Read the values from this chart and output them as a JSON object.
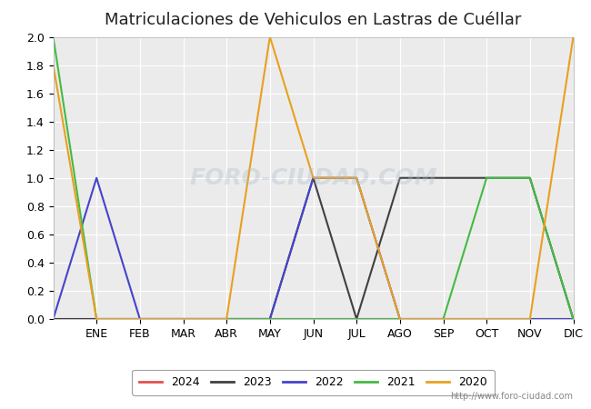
{
  "title": "Matriculaciones de Vehiculos en Lastras de Cuéllar",
  "month_labels": [
    "ENE",
    "FEB",
    "MAR",
    "ABR",
    "MAY",
    "JUN",
    "JUL",
    "AGO",
    "SEP",
    "OCT",
    "NOV",
    "DIC"
  ],
  "series": {
    "2024": {
      "color": "#e05050",
      "data": [
        0,
        0,
        0,
        0,
        0,
        0,
        0,
        0,
        0,
        0,
        0,
        0,
        0
      ]
    },
    "2023": {
      "color": "#404040",
      "data": [
        0,
        0,
        0,
        0,
        0,
        0,
        1,
        0,
        1,
        1,
        1,
        1,
        0
      ]
    },
    "2022": {
      "color": "#4444cc",
      "data": [
        0,
        1,
        0,
        0,
        0,
        0,
        1,
        1,
        0,
        0,
        0,
        0,
        0
      ]
    },
    "2021": {
      "color": "#44bb44",
      "data": [
        2,
        0,
        0,
        0,
        0,
        0,
        0,
        0,
        0,
        0,
        1,
        1,
        0
      ]
    },
    "2020": {
      "color": "#e8a020",
      "data": [
        1.8,
        0,
        0,
        0,
        0,
        2,
        1,
        1,
        0,
        0,
        0,
        0,
        2
      ]
    }
  },
  "legend_order": [
    "2024",
    "2023",
    "2022",
    "2021",
    "2020"
  ],
  "ylim": [
    0,
    2.0
  ],
  "yticks": [
    0.0,
    0.2,
    0.4,
    0.6,
    0.8,
    1.0,
    1.2,
    1.4,
    1.6,
    1.8,
    2.0
  ],
  "bg_color": "#ffffff",
  "plot_bg_color": "#ebebeb",
  "watermark": "FORO-CIUDAD.COM",
  "url": "http://www.foro-ciudad.com",
  "title_fontsize": 13
}
